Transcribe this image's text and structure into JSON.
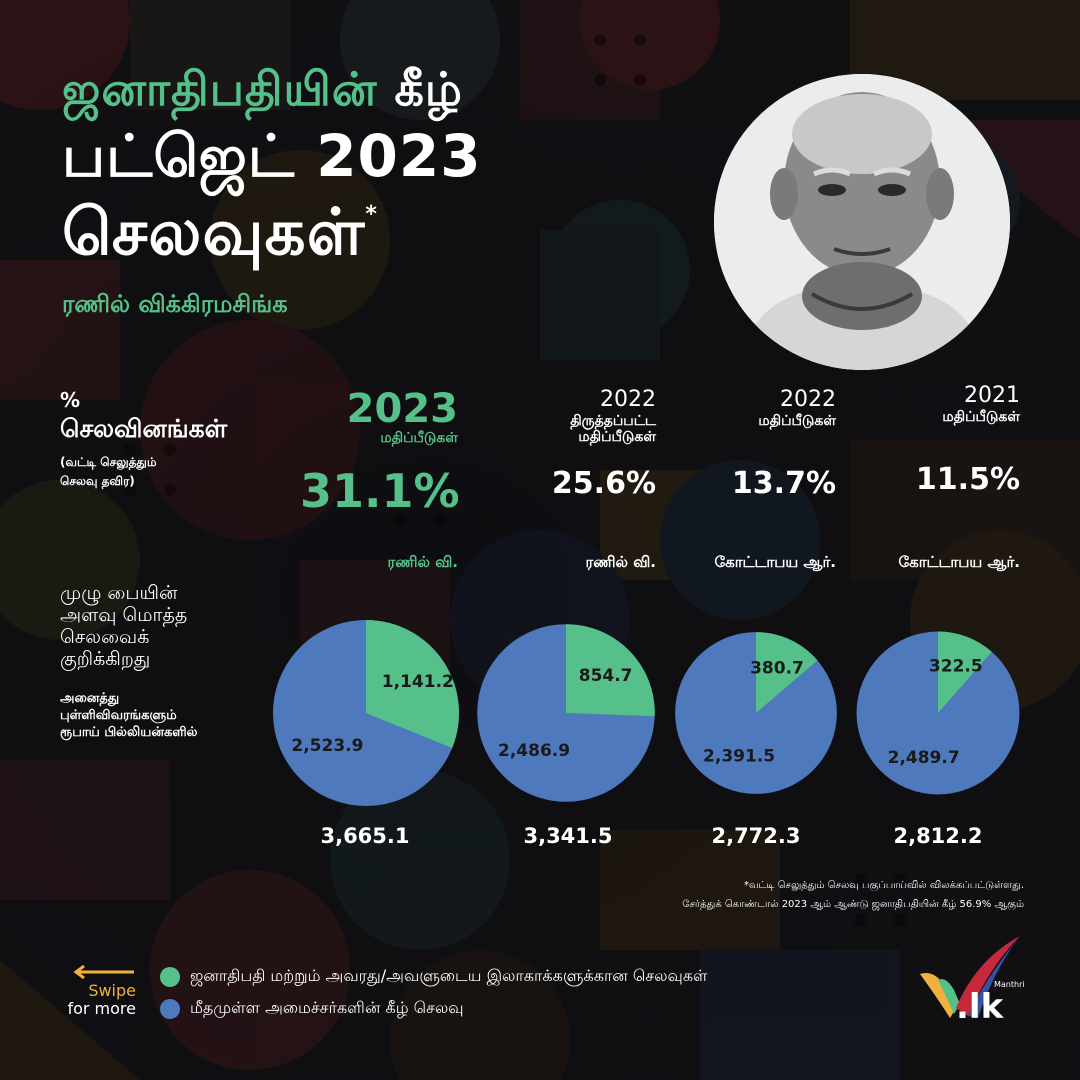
{
  "title": {
    "line1_green": "ஜனாதிபதியின்",
    "line1_white": "கீழ்",
    "line2": "பட்ஜெட் 2023",
    "line3": "செலவுகள்",
    "asterisk": "*",
    "subtitle": "ரணில் விக்கிரமசிங்க"
  },
  "header": {
    "percent_sign": "%",
    "label": "செலவினங்கள்",
    "note_line1": "(வட்டி செலுத்தும்",
    "note_line2": "செலவு தவிர)"
  },
  "columns": [
    {
      "year": "2023",
      "subtitle_line1": "மதிப்பீடுகள்",
      "subtitle_line2": "",
      "percent": "31.1%",
      "person": "ரணில் வி.",
      "highlight": true
    },
    {
      "year": "2022",
      "subtitle_line1": "திருத்தப்பட்ட",
      "subtitle_line2": "மதிப்பீடுகள்",
      "percent": "25.6%",
      "person": "ரணில் வி.",
      "highlight": false
    },
    {
      "year": "2022",
      "subtitle_line1": "மதிப்பீடுகள்",
      "subtitle_line2": "",
      "percent": "13.7%",
      "person": "கோட்டாபய ஆர்.",
      "highlight": false
    },
    {
      "year": "2021",
      "subtitle_line1": "மதிப்பீடுகள்",
      "subtitle_line2": "",
      "percent": "11.5%",
      "person": "கோட்டாபய ஆர்.",
      "highlight": false
    }
  ],
  "mid_note": {
    "line1": "முழு பையின்",
    "line2": "அளவு மொத்த",
    "line3": "செலவைக்",
    "line4": "குறிக்கிறது",
    "units_line1": "அனைத்து",
    "units_line2": "புள்ளிவிவரங்களும்",
    "units_line3": "ரூபாய் பில்லியன்களில்"
  },
  "chart_data": {
    "type": "pie",
    "units": "ரூபாய் பில்லியன்களில்",
    "categories": [
      "2023 மதிப்பீடுகள்",
      "2022 திருத்தப்பட்ட மதிப்பீடுகள்",
      "2022 மதிப்பீடுகள்",
      "2021 மதிப்பீடுகள்"
    ],
    "series": [
      {
        "name": "ஜனாதிபதி மற்றும் அவரது/அவளுடைய இலாகாக்களுக்கான செலவுகள்",
        "color": "#55c08a",
        "values": [
          1141.2,
          854.7,
          380.7,
          322.5
        ],
        "labels": [
          "1,141.2",
          "854.7",
          "380.7",
          "322.5"
        ]
      },
      {
        "name": "மீதமுள்ள அமைச்சர்களின் கீழ் செலவு",
        "color": "#4f79bd",
        "values": [
          2523.9,
          2486.9,
          2391.5,
          2489.7
        ],
        "labels": [
          "2,523.9",
          "2,486.9",
          "2,391.5",
          "2,489.7"
        ]
      }
    ],
    "totals": [
      3665.1,
      3341.5,
      2772.3,
      2812.2
    ],
    "total_labels": [
      "3,665.1",
      "3,341.5",
      "2,772.3",
      "2,812.2"
    ]
  },
  "footnote": {
    "line1": "*வட்டி செலுத்தும் செலவு பகுப்பாய்வில் விலக்கப்பட்டுள்ளது.",
    "line2": "சேர்த்துக் கொண்டால் 2023 ஆம் ஆண்டு ஜனாதிபதியின் கீழ் 56.9% ஆகும்"
  },
  "legend": [
    {
      "label": "ஜனாதிபதி மற்றும் அவரது/அவளுடைய இலாகாக்களுக்கான செலவுகள்",
      "color": "#55c08a"
    },
    {
      "label": "மீதமுள்ள அமைச்சர்களின் கீழ் செலவு",
      "color": "#4f79bd"
    }
  ],
  "swipe": {
    "line1": "Swipe",
    "line2": "for more",
    "arrow_color": "#f2b13c"
  },
  "logo": {
    "top_text": "Manthri",
    "main_text": ".lk",
    "icon": "checkmark-logo"
  },
  "portrait": {
    "icon": "person-portrait"
  }
}
